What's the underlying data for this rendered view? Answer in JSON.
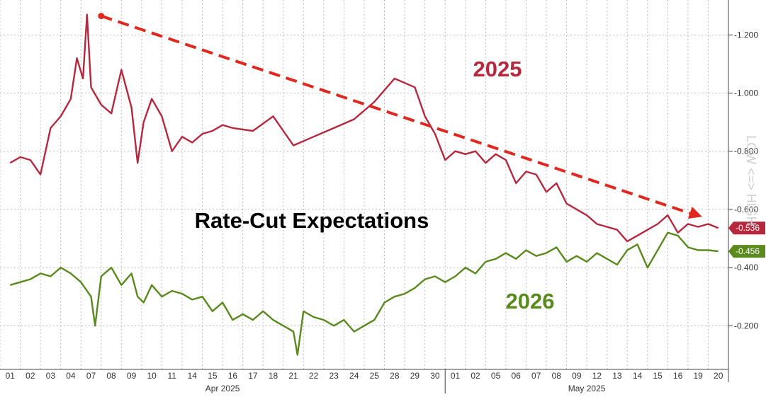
{
  "chart_data": {
    "type": "line",
    "title": "Rate-Cut Expectations",
    "y_axis_title": "LOW <=> HIGH",
    "ylim": [
      0.05,
      1.32
    ],
    "y_ticks": [
      {
        "value": 1.2,
        "label": "-1.200"
      },
      {
        "value": 1.0,
        "label": "-1.000"
      },
      {
        "value": 0.8,
        "label": "-0.800"
      },
      {
        "value": 0.6,
        "label": "-0.600"
      },
      {
        "value": 0.4,
        "label": "-0.400"
      },
      {
        "value": 0.2,
        "label": "-0.200"
      }
    ],
    "x_ticks": [
      "01",
      "02",
      "03",
      "04",
      "07",
      "08",
      "09",
      "10",
      "11",
      "14",
      "15",
      "16",
      "17",
      "18",
      "21",
      "22",
      "23",
      "24",
      "25",
      "28",
      "29",
      "30",
      "01",
      "02",
      "05",
      "06",
      "07",
      "08",
      "09",
      "12",
      "13",
      "14",
      "15",
      "16",
      "19",
      "20"
    ],
    "months": [
      {
        "label": "Apr 2025",
        "start": 0,
        "end": 21
      },
      {
        "label": "May 2025",
        "start": 22,
        "end": 35
      }
    ],
    "grid": true,
    "series": [
      {
        "name": "2025",
        "color": "#b5283e",
        "last_label": "-0.536",
        "x": [
          0,
          0.5,
          1,
          1.5,
          2,
          2.5,
          3,
          3.3,
          3.6,
          3.8,
          4,
          4.5,
          5,
          5.5,
          6,
          6.3,
          6.6,
          7,
          7.5,
          8,
          8.5,
          9,
          9.5,
          10,
          10.5,
          11,
          12,
          13,
          14,
          15,
          16,
          17,
          18,
          19,
          20,
          20.5,
          21,
          21.5,
          22,
          22.5,
          23,
          23.5,
          24,
          24.5,
          25,
          25.5,
          26,
          26.5,
          27,
          27.5,
          28,
          28.5,
          29,
          29.5,
          30,
          30.5,
          31,
          31.5,
          32,
          32.5,
          33,
          33.5,
          34,
          34.5,
          35
        ],
        "values": [
          0.76,
          0.78,
          0.77,
          0.72,
          0.88,
          0.92,
          0.98,
          1.12,
          1.05,
          1.27,
          1.02,
          0.96,
          0.93,
          1.08,
          0.95,
          0.76,
          0.9,
          0.98,
          0.92,
          0.8,
          0.85,
          0.83,
          0.86,
          0.87,
          0.89,
          0.88,
          0.87,
          0.92,
          0.82,
          0.85,
          0.88,
          0.91,
          0.97,
          1.05,
          1.02,
          0.92,
          0.86,
          0.77,
          0.8,
          0.79,
          0.8,
          0.76,
          0.79,
          0.77,
          0.69,
          0.73,
          0.72,
          0.66,
          0.69,
          0.62,
          0.6,
          0.58,
          0.55,
          0.54,
          0.53,
          0.49,
          0.51,
          0.53,
          0.55,
          0.58,
          0.52,
          0.55,
          0.54,
          0.55,
          0.536
        ]
      },
      {
        "name": "2026",
        "color": "#5a8a1e",
        "last_label": "-0.456",
        "x": [
          0,
          0.5,
          1,
          1.5,
          2,
          2.5,
          3,
          3.5,
          4,
          4.2,
          4.5,
          5,
          5.5,
          6,
          6.3,
          6.6,
          7,
          7.5,
          8,
          8.5,
          9,
          9.5,
          10,
          10.5,
          11,
          11.5,
          12,
          12.5,
          13,
          13.5,
          14,
          14.2,
          14.5,
          15,
          15.5,
          16,
          16.5,
          17,
          17.5,
          18,
          18.5,
          19,
          19.5,
          20,
          20.5,
          21,
          21.5,
          22,
          22.5,
          23,
          23.5,
          24,
          24.5,
          25,
          25.5,
          26,
          26.5,
          27,
          27.5,
          28,
          28.5,
          29,
          29.5,
          30,
          30.5,
          31,
          31.5,
          32,
          32.5,
          33,
          33.5,
          34,
          34.5,
          35
        ],
        "values": [
          0.34,
          0.35,
          0.36,
          0.38,
          0.37,
          0.4,
          0.38,
          0.35,
          0.3,
          0.2,
          0.37,
          0.4,
          0.34,
          0.38,
          0.3,
          0.28,
          0.34,
          0.3,
          0.32,
          0.31,
          0.29,
          0.3,
          0.25,
          0.28,
          0.22,
          0.24,
          0.22,
          0.25,
          0.22,
          0.2,
          0.18,
          0.1,
          0.25,
          0.23,
          0.22,
          0.2,
          0.22,
          0.18,
          0.2,
          0.22,
          0.28,
          0.3,
          0.31,
          0.33,
          0.36,
          0.37,
          0.35,
          0.37,
          0.4,
          0.38,
          0.42,
          0.43,
          0.45,
          0.43,
          0.46,
          0.44,
          0.45,
          0.47,
          0.42,
          0.44,
          0.42,
          0.45,
          0.43,
          0.41,
          0.46,
          0.48,
          0.4,
          0.46,
          0.52,
          0.51,
          0.47,
          0.46,
          0.46,
          0.456
        ]
      }
    ],
    "annotations": [
      {
        "text": "2025",
        "color": "#b5283e"
      },
      {
        "text": "2026",
        "color": "#5a8a1e"
      }
    ],
    "trend_arrow": {
      "color": "#e0281e",
      "x0": 4.5,
      "y0": 1.265,
      "x1": 34.2,
      "y1": 0.575
    }
  }
}
